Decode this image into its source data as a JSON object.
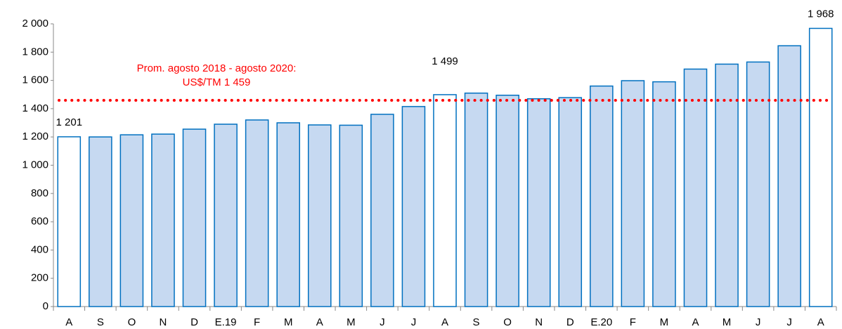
{
  "chart_data": {
    "type": "bar",
    "categories": [
      "A",
      "S",
      "O",
      "N",
      "D",
      "E.19",
      "F",
      "M",
      "A",
      "M",
      "J",
      "J",
      "A",
      "S",
      "O",
      "N",
      "D",
      "E.20",
      "F",
      "M",
      "A",
      "M",
      "J",
      "J",
      "A"
    ],
    "values": [
      1201,
      1200,
      1215,
      1220,
      1255,
      1290,
      1320,
      1300,
      1285,
      1283,
      1360,
      1415,
      1499,
      1510,
      1495,
      1470,
      1478,
      1560,
      1598,
      1590,
      1680,
      1715,
      1730,
      1845,
      1968
    ],
    "value_labels": [
      "1 201",
      null,
      null,
      null,
      null,
      null,
      null,
      null,
      null,
      null,
      null,
      null,
      "1 499",
      null,
      null,
      null,
      null,
      null,
      null,
      null,
      null,
      null,
      null,
      null,
      "1 968"
    ],
    "colors": [
      "#ffffff",
      "#c6d9f1",
      "#c6d9f1",
      "#c6d9f1",
      "#c6d9f1",
      "#c6d9f1",
      "#c6d9f1",
      "#c6d9f1",
      "#c6d9f1",
      "#c6d9f1",
      "#c6d9f1",
      "#c6d9f1",
      "#ffffff",
      "#c6d9f1",
      "#c6d9f1",
      "#c6d9f1",
      "#c6d9f1",
      "#c6d9f1",
      "#c6d9f1",
      "#c6d9f1",
      "#c6d9f1",
      "#c6d9f1",
      "#c6d9f1",
      "#c6d9f1",
      "#ffffff"
    ],
    "edge_color": "#0070c0",
    "ylim": [
      0,
      2000
    ],
    "yticks": [
      0,
      200,
      400,
      600,
      800,
      {
        "value": 1000,
        "label": "1 000"
      },
      {
        "value": 1200,
        "label": "1 200"
      },
      {
        "value": 1400,
        "label": "1 400"
      },
      {
        "value": 1600,
        "label": "1 600"
      },
      {
        "value": 1800,
        "label": "1 800"
      },
      {
        "value": 2000,
        "label": "2 000"
      }
    ],
    "reference_line": {
      "value": 1459,
      "color": "#ff0000",
      "label": [
        "Prom. agosto 2018 - agosto 2020:",
        "US$/TM 1 459"
      ]
    }
  }
}
